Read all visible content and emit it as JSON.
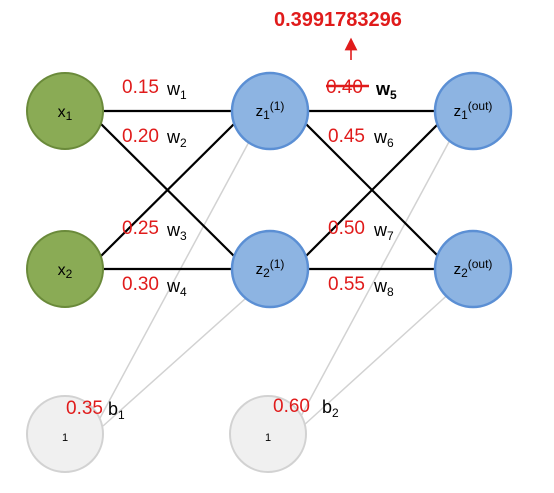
{
  "colors": {
    "input_fill": "#8aab55",
    "input_stroke": "#6a8a3a",
    "hidden_fill": "#8db4e2",
    "hidden_stroke": "#5b8fd4",
    "output_fill": "#8db4e2",
    "output_stroke": "#5b8fd4",
    "bias_fill": "#f0f0f0",
    "bias_stroke": "#d2d2d2",
    "weight_value": "#e01b1b",
    "updated_value": "#e01b1b"
  },
  "nodes": {
    "x1": {
      "base": "x",
      "sub": "1"
    },
    "x2": {
      "base": "x",
      "sub": "2"
    },
    "z1_hidden": {
      "base": "z",
      "sub": "1",
      "sup": "(1)"
    },
    "z2_hidden": {
      "base": "z",
      "sub": "2",
      "sup": "(1)"
    },
    "z1_out": {
      "base": "z",
      "sub": "1",
      "sup": "(out)"
    },
    "z2_out": {
      "base": "z",
      "sub": "2",
      "sup": "(out)"
    },
    "bias1": {
      "label": "1"
    },
    "bias2": {
      "label": "1"
    }
  },
  "weights": {
    "w1": {
      "value": "0.15",
      "name": "w",
      "sub": "1"
    },
    "w2": {
      "value": "0.20",
      "name": "w",
      "sub": "2"
    },
    "w3": {
      "value": "0.25",
      "name": "w",
      "sub": "3"
    },
    "w4": {
      "value": "0.30",
      "name": "w",
      "sub": "4"
    },
    "w5": {
      "value": "0.40",
      "name": "w",
      "sub": "5"
    },
    "w6": {
      "value": "0.45",
      "name": "w",
      "sub": "6"
    },
    "w7": {
      "value": "0.50",
      "name": "w",
      "sub": "7"
    },
    "w8": {
      "value": "0.55",
      "name": "w",
      "sub": "8"
    },
    "b1": {
      "value": "0.35",
      "name": "b",
      "sub": "1"
    },
    "b2": {
      "value": "0.60",
      "name": "b",
      "sub": "2"
    }
  },
  "update": {
    "new_value": "0.3991783296"
  }
}
